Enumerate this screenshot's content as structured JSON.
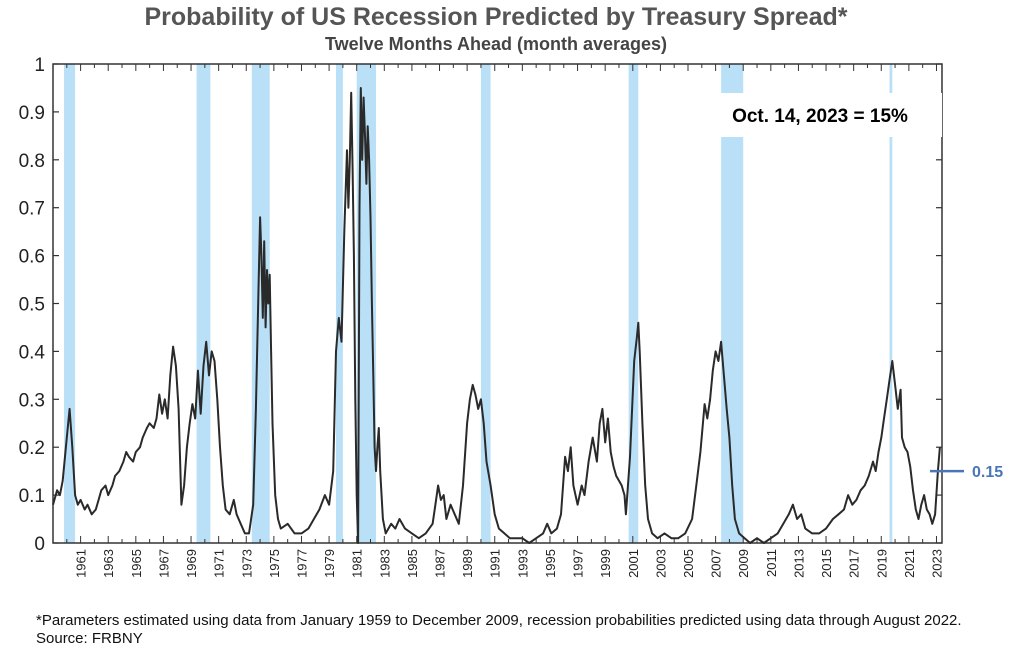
{
  "chart_data": {
    "type": "line",
    "title": "Probability of US Recession Predicted by Treasury Spread*",
    "subtitle": "Twelve Months Ahead (month averages)",
    "xlabel": "",
    "ylabel": "",
    "ylim": [
      0,
      1
    ],
    "xlim": [
      1959.5,
      2023.9
    ],
    "y_ticks": [
      "0",
      "0.1",
      "0.2",
      "0.3",
      "0.4",
      "0.5",
      "0.6",
      "0.7",
      "0.8",
      "0.9",
      "1"
    ],
    "x_ticks": [
      "1961",
      "1963",
      "1965",
      "1967",
      "1969",
      "1971",
      "1973",
      "1975",
      "1977",
      "1979",
      "1981",
      "1983",
      "1985",
      "1987",
      "1989",
      "1991",
      "1993",
      "1995",
      "1997",
      "1999",
      "2001",
      "2003",
      "2005",
      "2007",
      "2009",
      "2011",
      "2013",
      "2015",
      "2017",
      "2019",
      "2021",
      "2023"
    ],
    "recession_shading": [
      [
        1960.3,
        1961.1
      ],
      [
        1969.9,
        1970.9
      ],
      [
        1973.9,
        1975.2
      ],
      [
        1980.0,
        1980.5
      ],
      [
        1981.5,
        1982.9
      ],
      [
        1990.5,
        1991.2
      ],
      [
        2001.2,
        2001.9
      ],
      [
        2007.9,
        2009.5
      ],
      [
        2020.1,
        2020.3
      ]
    ],
    "series": [
      {
        "values": [
          [
            1959.5,
            0.08
          ],
          [
            1959.8,
            0.11
          ],
          [
            1960.0,
            0.1
          ],
          [
            1960.2,
            0.13
          ],
          [
            1960.5,
            0.22
          ],
          [
            1960.7,
            0.28
          ],
          [
            1960.9,
            0.2
          ],
          [
            1961.1,
            0.1
          ],
          [
            1961.3,
            0.08
          ],
          [
            1961.5,
            0.09
          ],
          [
            1961.8,
            0.07
          ],
          [
            1962.0,
            0.08
          ],
          [
            1962.3,
            0.06
          ],
          [
            1962.6,
            0.07
          ],
          [
            1962.8,
            0.09
          ],
          [
            1963.0,
            0.11
          ],
          [
            1963.3,
            0.12
          ],
          [
            1963.5,
            0.1
          ],
          [
            1963.8,
            0.12
          ],
          [
            1964.0,
            0.14
          ],
          [
            1964.3,
            0.15
          ],
          [
            1964.6,
            0.17
          ],
          [
            1964.8,
            0.19
          ],
          [
            1965.0,
            0.18
          ],
          [
            1965.3,
            0.17
          ],
          [
            1965.5,
            0.19
          ],
          [
            1965.8,
            0.2
          ],
          [
            1966.0,
            0.22
          ],
          [
            1966.3,
            0.24
          ],
          [
            1966.5,
            0.25
          ],
          [
            1966.8,
            0.24
          ],
          [
            1967.0,
            0.26
          ],
          [
            1967.2,
            0.31
          ],
          [
            1967.4,
            0.27
          ],
          [
            1967.6,
            0.3
          ],
          [
            1967.8,
            0.26
          ],
          [
            1968.0,
            0.35
          ],
          [
            1968.2,
            0.41
          ],
          [
            1968.4,
            0.37
          ],
          [
            1968.6,
            0.28
          ],
          [
            1968.8,
            0.08
          ],
          [
            1969.0,
            0.12
          ],
          [
            1969.2,
            0.2
          ],
          [
            1969.4,
            0.25
          ],
          [
            1969.6,
            0.29
          ],
          [
            1969.8,
            0.26
          ],
          [
            1970.0,
            0.36
          ],
          [
            1970.2,
            0.27
          ],
          [
            1970.4,
            0.37
          ],
          [
            1970.6,
            0.42
          ],
          [
            1970.8,
            0.35
          ],
          [
            1971.0,
            0.4
          ],
          [
            1971.2,
            0.38
          ],
          [
            1971.4,
            0.3
          ],
          [
            1971.6,
            0.2
          ],
          [
            1971.8,
            0.12
          ],
          [
            1972.0,
            0.07
          ],
          [
            1972.3,
            0.06
          ],
          [
            1972.6,
            0.09
          ],
          [
            1972.8,
            0.06
          ],
          [
            1973.1,
            0.04
          ],
          [
            1973.4,
            0.02
          ],
          [
            1973.7,
            0.02
          ],
          [
            1974.0,
            0.08
          ],
          [
            1974.2,
            0.28
          ],
          [
            1974.4,
            0.55
          ],
          [
            1974.5,
            0.68
          ],
          [
            1974.6,
            0.6
          ],
          [
            1974.7,
            0.47
          ],
          [
            1974.8,
            0.63
          ],
          [
            1974.9,
            0.45
          ],
          [
            1975.0,
            0.57
          ],
          [
            1975.1,
            0.5
          ],
          [
            1975.2,
            0.56
          ],
          [
            1975.3,
            0.4
          ],
          [
            1975.4,
            0.25
          ],
          [
            1975.6,
            0.1
          ],
          [
            1975.8,
            0.05
          ],
          [
            1976.0,
            0.03
          ],
          [
            1976.5,
            0.04
          ],
          [
            1977.0,
            0.02
          ],
          [
            1977.5,
            0.02
          ],
          [
            1978.0,
            0.03
          ],
          [
            1978.4,
            0.05
          ],
          [
            1978.8,
            0.07
          ],
          [
            1979.2,
            0.1
          ],
          [
            1979.5,
            0.08
          ],
          [
            1979.8,
            0.15
          ],
          [
            1980.0,
            0.4
          ],
          [
            1980.2,
            0.47
          ],
          [
            1980.4,
            0.42
          ],
          [
            1980.6,
            0.65
          ],
          [
            1980.8,
            0.82
          ],
          [
            1980.9,
            0.7
          ],
          [
            1981.0,
            0.8
          ],
          [
            1981.1,
            0.94
          ],
          [
            1981.2,
            0.78
          ],
          [
            1981.3,
            0.6
          ],
          [
            1981.4,
            0.3
          ],
          [
            1981.5,
            0.1
          ],
          [
            1981.6,
            0.0
          ],
          [
            1981.7,
            0.7
          ],
          [
            1981.8,
            0.95
          ],
          [
            1981.9,
            0.8
          ],
          [
            1982.0,
            0.93
          ],
          [
            1982.1,
            0.85
          ],
          [
            1982.2,
            0.75
          ],
          [
            1982.3,
            0.87
          ],
          [
            1982.4,
            0.8
          ],
          [
            1982.5,
            0.68
          ],
          [
            1982.6,
            0.5
          ],
          [
            1982.7,
            0.35
          ],
          [
            1982.8,
            0.2
          ],
          [
            1982.9,
            0.15
          ],
          [
            1983.0,
            0.2
          ],
          [
            1983.1,
            0.24
          ],
          [
            1983.2,
            0.15
          ],
          [
            1983.4,
            0.05
          ],
          [
            1983.6,
            0.02
          ],
          [
            1984.0,
            0.04
          ],
          [
            1984.3,
            0.03
          ],
          [
            1984.6,
            0.05
          ],
          [
            1985.0,
            0.03
          ],
          [
            1985.5,
            0.02
          ],
          [
            1986.0,
            0.01
          ],
          [
            1986.5,
            0.02
          ],
          [
            1987.0,
            0.04
          ],
          [
            1987.2,
            0.08
          ],
          [
            1987.4,
            0.12
          ],
          [
            1987.6,
            0.09
          ],
          [
            1987.8,
            0.1
          ],
          [
            1988.0,
            0.05
          ],
          [
            1988.3,
            0.08
          ],
          [
            1988.6,
            0.06
          ],
          [
            1988.9,
            0.04
          ],
          [
            1989.2,
            0.12
          ],
          [
            1989.5,
            0.25
          ],
          [
            1989.7,
            0.3
          ],
          [
            1989.9,
            0.33
          ],
          [
            1990.1,
            0.31
          ],
          [
            1990.3,
            0.28
          ],
          [
            1990.5,
            0.3
          ],
          [
            1990.7,
            0.25
          ],
          [
            1990.9,
            0.17
          ],
          [
            1991.2,
            0.12
          ],
          [
            1991.5,
            0.06
          ],
          [
            1991.8,
            0.03
          ],
          [
            1992.2,
            0.02
          ],
          [
            1992.6,
            0.01
          ],
          [
            1993.0,
            0.01
          ],
          [
            1993.5,
            0.01
          ],
          [
            1994.0,
            0.0
          ],
          [
            1994.5,
            0.01
          ],
          [
            1995.0,
            0.02
          ],
          [
            1995.3,
            0.04
          ],
          [
            1995.6,
            0.02
          ],
          [
            1996.0,
            0.03
          ],
          [
            1996.3,
            0.06
          ],
          [
            1996.6,
            0.18
          ],
          [
            1996.8,
            0.15
          ],
          [
            1997.0,
            0.2
          ],
          [
            1997.2,
            0.12
          ],
          [
            1997.5,
            0.08
          ],
          [
            1997.8,
            0.12
          ],
          [
            1998.0,
            0.1
          ],
          [
            1998.3,
            0.17
          ],
          [
            1998.6,
            0.22
          ],
          [
            1998.9,
            0.17
          ],
          [
            1999.1,
            0.25
          ],
          [
            1999.3,
            0.28
          ],
          [
            1999.5,
            0.21
          ],
          [
            1999.7,
            0.26
          ],
          [
            1999.9,
            0.19
          ],
          [
            2000.1,
            0.16
          ],
          [
            2000.3,
            0.14
          ],
          [
            2000.5,
            0.13
          ],
          [
            2000.7,
            0.12
          ],
          [
            2000.9,
            0.1
          ],
          [
            2001.0,
            0.06
          ],
          [
            2001.3,
            0.18
          ],
          [
            2001.6,
            0.38
          ],
          [
            2001.8,
            0.43
          ],
          [
            2001.9,
            0.46
          ],
          [
            2002.0,
            0.4
          ],
          [
            2002.2,
            0.25
          ],
          [
            2002.4,
            0.12
          ],
          [
            2002.6,
            0.05
          ],
          [
            2002.9,
            0.02
          ],
          [
            2003.3,
            0.01
          ],
          [
            2003.8,
            0.02
          ],
          [
            2004.3,
            0.01
          ],
          [
            2004.8,
            0.01
          ],
          [
            2005.3,
            0.02
          ],
          [
            2005.8,
            0.05
          ],
          [
            2006.1,
            0.12
          ],
          [
            2006.4,
            0.19
          ],
          [
            2006.7,
            0.29
          ],
          [
            2006.9,
            0.26
          ],
          [
            2007.1,
            0.3
          ],
          [
            2007.3,
            0.36
          ],
          [
            2007.5,
            0.4
          ],
          [
            2007.7,
            0.38
          ],
          [
            2007.9,
            0.42
          ],
          [
            2008.1,
            0.35
          ],
          [
            2008.3,
            0.28
          ],
          [
            2008.5,
            0.22
          ],
          [
            2008.7,
            0.12
          ],
          [
            2008.9,
            0.05
          ],
          [
            2009.2,
            0.02
          ],
          [
            2009.6,
            0.01
          ],
          [
            2010.0,
            0.0
          ],
          [
            2010.5,
            0.01
          ],
          [
            2011.0,
            0.0
          ],
          [
            2011.5,
            0.01
          ],
          [
            2012.0,
            0.02
          ],
          [
            2012.4,
            0.04
          ],
          [
            2012.8,
            0.06
          ],
          [
            2013.1,
            0.08
          ],
          [
            2013.4,
            0.05
          ],
          [
            2013.7,
            0.06
          ],
          [
            2014.0,
            0.03
          ],
          [
            2014.5,
            0.02
          ],
          [
            2015.0,
            0.02
          ],
          [
            2015.5,
            0.03
          ],
          [
            2016.0,
            0.05
          ],
          [
            2016.4,
            0.06
          ],
          [
            2016.8,
            0.07
          ],
          [
            2017.1,
            0.1
          ],
          [
            2017.4,
            0.08
          ],
          [
            2017.7,
            0.09
          ],
          [
            2018.0,
            0.11
          ],
          [
            2018.3,
            0.12
          ],
          [
            2018.6,
            0.14
          ],
          [
            2018.9,
            0.17
          ],
          [
            2019.1,
            0.15
          ],
          [
            2019.3,
            0.19
          ],
          [
            2019.5,
            0.22
          ],
          [
            2019.7,
            0.26
          ],
          [
            2019.9,
            0.3
          ],
          [
            2020.1,
            0.34
          ],
          [
            2020.3,
            0.38
          ],
          [
            2020.5,
            0.33
          ],
          [
            2020.7,
            0.28
          ],
          [
            2020.9,
            0.32
          ],
          [
            2021.0,
            0.22
          ],
          [
            2021.2,
            0.2
          ],
          [
            2021.4,
            0.19
          ],
          [
            2021.6,
            0.16
          ],
          [
            2021.8,
            0.11
          ],
          [
            2022.0,
            0.07
          ],
          [
            2022.2,
            0.05
          ],
          [
            2022.4,
            0.08
          ],
          [
            2022.6,
            0.1
          ],
          [
            2022.8,
            0.07
          ],
          [
            2023.0,
            0.06
          ],
          [
            2023.2,
            0.04
          ],
          [
            2023.4,
            0.06
          ],
          [
            2023.6,
            0.15
          ],
          [
            2023.75,
            0.2
          ]
        ]
      }
    ],
    "annotation": "Oct. 14, 2023 = 15%",
    "marker": {
      "label": "0.15",
      "value": 0.15
    },
    "footnote": "*Parameters estimated using data from January 1959 to December 2009, recession probabilities predicted using data through August 2022. Source: FRBNY",
    "colors": {
      "line": "#2a2a2a",
      "shading": "#b9e0f7",
      "marker": "#4a76b8"
    }
  }
}
